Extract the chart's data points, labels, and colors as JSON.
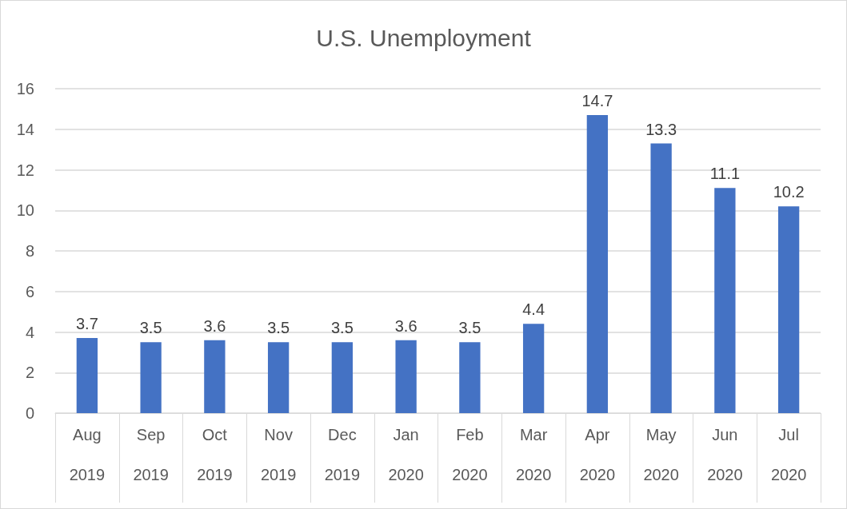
{
  "chart_data": {
    "type": "bar",
    "title": "U.S. Unemployment",
    "categories": [
      "Aug 2019",
      "Sep 2019",
      "Oct 2019",
      "Nov 2019",
      "Dec 2019",
      "Jan 2020",
      "Feb 2020",
      "Mar 2020",
      "Apr 2020",
      "May 2020",
      "Jun 2020",
      "Jul 2020"
    ],
    "values": [
      3.7,
      3.5,
      3.6,
      3.5,
      3.5,
      3.6,
      3.5,
      4.4,
      14.7,
      13.3,
      11.1,
      10.2
    ],
    "color": "#4472c4",
    "ylim": [
      0,
      16
    ],
    "yticks": [
      0,
      2,
      4,
      6,
      8,
      10,
      12,
      14,
      16
    ],
    "grid": "y",
    "data_labels": true
  }
}
